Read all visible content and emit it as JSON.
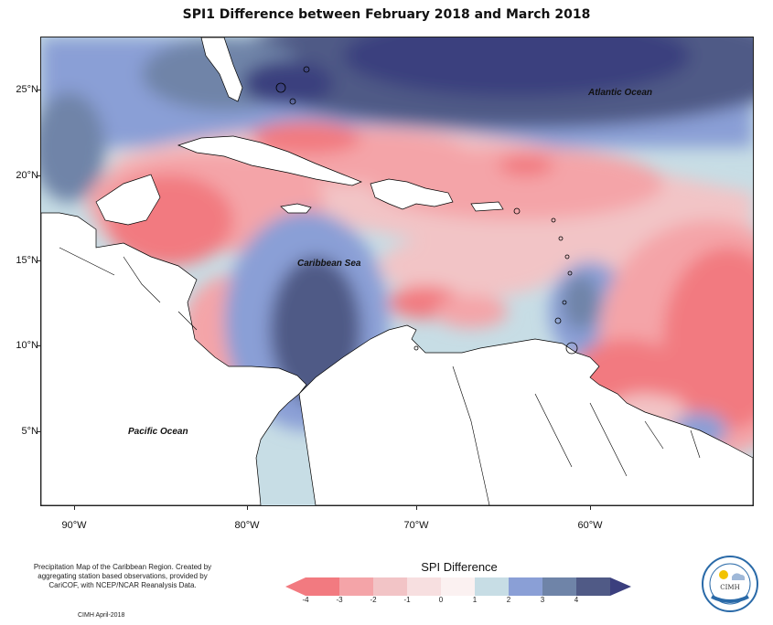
{
  "title": "SPI1 Difference between February 2018 and March 2018",
  "map_labels": {
    "atlantic": "Atlantic Ocean",
    "caribbean": "Caribbean Sea",
    "pacific": "Pacific Ocean"
  },
  "y_ticks": [
    "25°N",
    "20°N",
    "15°N",
    "10°N",
    "5°N"
  ],
  "x_ticks": [
    "90°W",
    "80°W",
    "70°W",
    "60°W"
  ],
  "note": "Precipitation Map of the Caribbean Region. Created by aggregating station based observations, provided by CariCOF, with NCEP/NCAR Reanalysis Data.",
  "credit": "CIMH April-2018",
  "legend": {
    "title": "SPI Difference",
    "labels": [
      "-4",
      "-3",
      "-2",
      "-1",
      "0",
      "1",
      "2",
      "3",
      "4"
    ],
    "colors": [
      "#f27a80",
      "#f4a4a8",
      "#f2c4c6",
      "#f7dfe0",
      "#fbf1f1",
      "#c7dde5",
      "#8a9fd6",
      "#6f84a8",
      "#505a86",
      "#3b3f7e"
    ]
  },
  "logo_text": "CIMH",
  "colors": {
    "strong_wet": "#3b3f7e",
    "wet": "#505a86",
    "moderate_wet": "#6f84a8",
    "light_wet": "#8a9fd6",
    "near_normal_wet": "#c7dde5",
    "near_normal": "#fbf1f1",
    "light_dry": "#f7dfe0",
    "moderate_dry": "#f2c4c6",
    "dry": "#f4a4a8",
    "strong_dry": "#f27a80",
    "land": "#ffffff"
  }
}
